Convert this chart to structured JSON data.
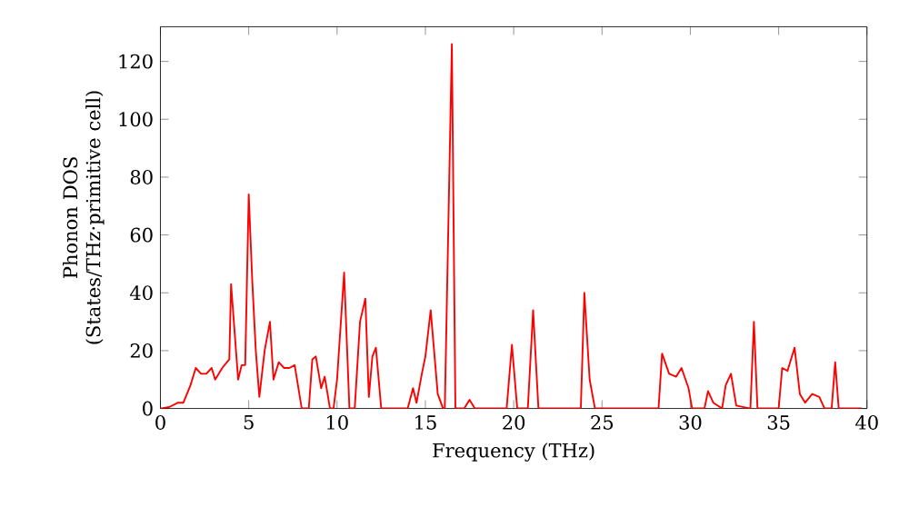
{
  "chart_data": {
    "type": "line",
    "xlabel": "Frequency (THz)",
    "ylabel": "Phonon DOS (States/THz·primitive cell)",
    "xlim": [
      0,
      40
    ],
    "ylim": [
      0,
      132
    ],
    "xticks": [
      0,
      5,
      10,
      15,
      20,
      25,
      30,
      35,
      40
    ],
    "yticks": [
      0,
      20,
      40,
      60,
      80,
      100,
      120
    ],
    "grid": false,
    "series": [
      {
        "color": "#ff0000",
        "x": [
          0,
          0.5,
          1,
          1.3,
          1.7,
          2,
          2.3,
          2.6,
          2.9,
          3.1,
          3.5,
          3.9,
          4.0,
          4.4,
          4.6,
          4.8,
          5.0,
          5.2,
          5.4,
          5.6,
          5.9,
          6.2,
          6.4,
          6.7,
          7.0,
          7.3,
          7.6,
          8.0,
          8.4,
          8.6,
          8.8,
          9.1,
          9.3,
          9.6,
          9.8,
          10.0,
          10.4,
          10.7,
          11.0,
          11.3,
          11.6,
          11.8,
          12.0,
          12.2,
          12.5,
          14.0,
          14.3,
          14.5,
          14.8,
          15.0,
          15.3,
          15.7,
          16.0,
          16.1,
          16.5,
          16.7,
          17.2,
          17.5,
          17.8,
          19.6,
          19.9,
          20.2,
          20.8,
          21.1,
          21.4,
          23.8,
          24.0,
          24.3,
          24.6,
          28.2,
          28.4,
          28.8,
          29.2,
          29.5,
          29.9,
          30.1,
          30.8,
          31.0,
          31.3,
          31.8,
          32.0,
          32.3,
          32.6,
          33.4,
          33.6,
          33.8,
          35.0,
          35.2,
          35.5,
          35.9,
          36.2,
          36.5,
          36.9,
          37.3,
          37.6,
          38.0,
          38.2,
          38.4,
          39.7
        ],
        "values": [
          0,
          0.5,
          2,
          2,
          8,
          14,
          12,
          12,
          14,
          10,
          14,
          17,
          43,
          10,
          15,
          15,
          74,
          44,
          20,
          4,
          20,
          30,
          10,
          16,
          14,
          14,
          15,
          0,
          0,
          17,
          18,
          7,
          11,
          0,
          0,
          10,
          47,
          0,
          0,
          30,
          38,
          4,
          18,
          21,
          0,
          0,
          7,
          2,
          12,
          18,
          34,
          5,
          0,
          0,
          126,
          0,
          0,
          3,
          0,
          0,
          22,
          0,
          0,
          34,
          0,
          0,
          40,
          10,
          0,
          0,
          19,
          12,
          11,
          14,
          7,
          0,
          0,
          6,
          2,
          0,
          8,
          12,
          1,
          0,
          30,
          0,
          0,
          14,
          13,
          21,
          5,
          2,
          5,
          4,
          0,
          0,
          16,
          0,
          0
        ]
      }
    ]
  }
}
